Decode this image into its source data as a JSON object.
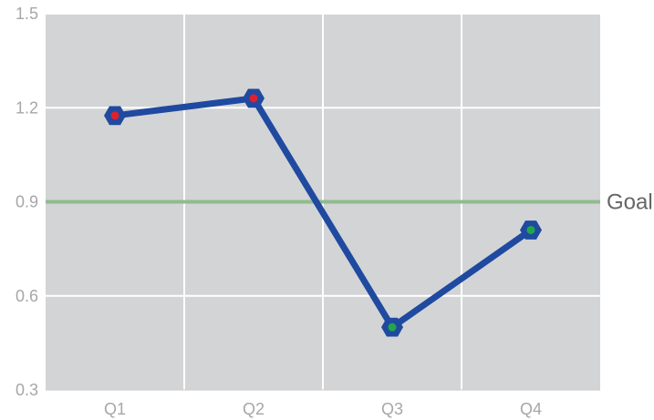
{
  "chart_data": {
    "type": "line",
    "categories": [
      "Q1",
      "Q2",
      "Q3",
      "Q4"
    ],
    "series": [
      {
        "values": [
          1.175,
          1.23,
          0.5,
          0.81
        ],
        "color": "#1f4aa0",
        "point_colors": [
          "#e0202e",
          "#e0202e",
          "#22a64a",
          "#22a64a"
        ]
      }
    ],
    "ylim": [
      0.3,
      1.5
    ],
    "yticks": [
      0.3,
      0.6,
      0.9,
      1.2,
      1.5
    ],
    "ytick_labels": [
      "0.3",
      "0.6",
      "0.9",
      "1.2",
      "1.5"
    ],
    "goal": {
      "value": 0.9,
      "label": "Goal",
      "color": "#8fbc8f"
    },
    "background_color": "#d3d4d6",
    "grid": true,
    "grid_color": "#ffffff",
    "title": "",
    "xlabel": "",
    "ylabel": ""
  }
}
